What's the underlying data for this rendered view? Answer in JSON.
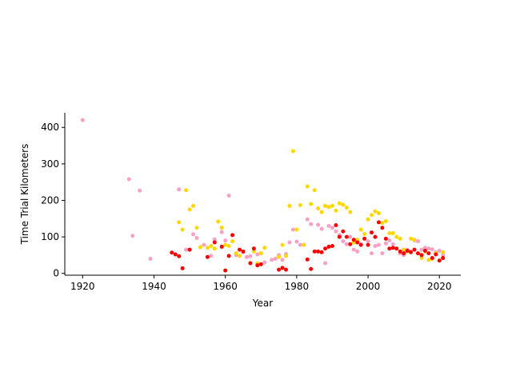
{
  "chart_data": {
    "type": "scatter",
    "xlabel": "Year",
    "ylabel": "Time Trial Kilometers",
    "xlim": [
      1915,
      2026
    ],
    "ylim": [
      -5,
      440
    ],
    "xticks": [
      1920,
      1940,
      1960,
      1980,
      2000,
      2020
    ],
    "yticks": [
      0,
      100,
      200,
      300,
      400
    ],
    "grid": false,
    "legend": "none",
    "series": [
      {
        "color": "#f7a1c4",
        "points": [
          [
            1920,
            420
          ],
          [
            1933,
            258
          ],
          [
            1934,
            103
          ],
          [
            1936,
            227
          ],
          [
            1939,
            40
          ],
          [
            1947,
            230
          ],
          [
            1949,
            65
          ],
          [
            1951,
            107
          ],
          [
            1952,
            97
          ],
          [
            1954,
            78
          ],
          [
            1956,
            48
          ],
          [
            1957,
            93
          ],
          [
            1959,
            113
          ],
          [
            1960,
            90
          ],
          [
            1961,
            213
          ],
          [
            1963,
            50
          ],
          [
            1965,
            58
          ],
          [
            1966,
            45
          ],
          [
            1967,
            47
          ],
          [
            1969,
            52
          ],
          [
            1970,
            55
          ],
          [
            1971,
            30
          ],
          [
            1973,
            37
          ],
          [
            1974,
            40
          ],
          [
            1975,
            50
          ],
          [
            1976,
            37
          ],
          [
            1977,
            53
          ],
          [
            1978,
            85
          ],
          [
            1979,
            120
          ],
          [
            1980,
            87
          ],
          [
            1981,
            78
          ],
          [
            1982,
            78
          ],
          [
            1983,
            148
          ],
          [
            1984,
            135
          ],
          [
            1986,
            133
          ],
          [
            1987,
            122
          ],
          [
            1988,
            28
          ],
          [
            1989,
            130
          ],
          [
            1990,
            125
          ],
          [
            1991,
            115
          ],
          [
            1992,
            105
          ],
          [
            1993,
            88
          ],
          [
            1994,
            80
          ],
          [
            1995,
            100
          ],
          [
            1996,
            65
          ],
          [
            1997,
            60
          ],
          [
            1998,
            80
          ],
          [
            2000,
            88
          ],
          [
            2001,
            55
          ],
          [
            2002,
            75
          ],
          [
            2003,
            78
          ],
          [
            2004,
            55
          ],
          [
            2005,
            82
          ],
          [
            2006,
            90
          ],
          [
            2007,
            80
          ],
          [
            2008,
            68
          ],
          [
            2009,
            55
          ],
          [
            2010,
            50
          ],
          [
            2011,
            65
          ],
          [
            2012,
            60
          ],
          [
            2013,
            90
          ],
          [
            2014,
            88
          ],
          [
            2015,
            65
          ],
          [
            2016,
            70
          ],
          [
            2017,
            68
          ],
          [
            2018,
            66
          ],
          [
            2019,
            58
          ],
          [
            2020,
            62
          ],
          [
            2021,
            50
          ]
        ]
      },
      {
        "color": "#ffd700",
        "points": [
          [
            1947,
            140
          ],
          [
            1948,
            120
          ],
          [
            1949,
            228
          ],
          [
            1950,
            175
          ],
          [
            1951,
            185
          ],
          [
            1952,
            125
          ],
          [
            1953,
            72
          ],
          [
            1955,
            70
          ],
          [
            1956,
            75
          ],
          [
            1957,
            68
          ],
          [
            1958,
            142
          ],
          [
            1959,
            125
          ],
          [
            1960,
            78
          ],
          [
            1961,
            75
          ],
          [
            1962,
            88
          ],
          [
            1963,
            55
          ],
          [
            1964,
            48
          ],
          [
            1968,
            60
          ],
          [
            1969,
            27
          ],
          [
            1970,
            55
          ],
          [
            1971,
            70
          ],
          [
            1975,
            45
          ],
          [
            1976,
            78
          ],
          [
            1977,
            48
          ],
          [
            1978,
            185
          ],
          [
            1979,
            335
          ],
          [
            1980,
            120
          ],
          [
            1981,
            187
          ],
          [
            1982,
            78
          ],
          [
            1983,
            238
          ],
          [
            1984,
            190
          ],
          [
            1985,
            228
          ],
          [
            1986,
            178
          ],
          [
            1987,
            168
          ],
          [
            1988,
            185
          ],
          [
            1989,
            182
          ],
          [
            1990,
            185
          ],
          [
            1991,
            172
          ],
          [
            1992,
            192
          ],
          [
            1993,
            188
          ],
          [
            1994,
            180
          ],
          [
            1995,
            168
          ],
          [
            1996,
            85
          ],
          [
            1997,
            92
          ],
          [
            1998,
            120
          ],
          [
            1999,
            108
          ],
          [
            2000,
            148
          ],
          [
            2001,
            160
          ],
          [
            2002,
            170
          ],
          [
            2003,
            165
          ],
          [
            2004,
            138
          ],
          [
            2005,
            143
          ],
          [
            2006,
            110
          ],
          [
            2007,
            110
          ],
          [
            2008,
            100
          ],
          [
            2009,
            95
          ],
          [
            2010,
            65
          ],
          [
            2011,
            60
          ],
          [
            2012,
            95
          ],
          [
            2013,
            92
          ],
          [
            2014,
            55
          ],
          [
            2015,
            42
          ],
          [
            2016,
            60
          ],
          [
            2017,
            37
          ],
          [
            2018,
            40
          ],
          [
            2019,
            55
          ],
          [
            2020,
            35
          ],
          [
            2021,
            58
          ]
        ]
      },
      {
        "color": "#ff0000",
        "points": [
          [
            1945,
            57
          ],
          [
            1946,
            52
          ],
          [
            1947,
            47
          ],
          [
            1948,
            14
          ],
          [
            1950,
            65
          ],
          [
            1955,
            45
          ],
          [
            1957,
            85
          ],
          [
            1959,
            73
          ],
          [
            1960,
            8
          ],
          [
            1961,
            48
          ],
          [
            1962,
            105
          ],
          [
            1964,
            65
          ],
          [
            1965,
            60
          ],
          [
            1967,
            28
          ],
          [
            1968,
            68
          ],
          [
            1969,
            22
          ],
          [
            1970,
            25
          ],
          [
            1975,
            10
          ],
          [
            1976,
            15
          ],
          [
            1977,
            10
          ],
          [
            1983,
            38
          ],
          [
            1984,
            12
          ],
          [
            1985,
            60
          ],
          [
            1986,
            60
          ],
          [
            1987,
            58
          ],
          [
            1988,
            68
          ],
          [
            1989,
            73
          ],
          [
            1990,
            75
          ],
          [
            1991,
            132
          ],
          [
            1992,
            100
          ],
          [
            1993,
            115
          ],
          [
            1994,
            100
          ],
          [
            1995,
            80
          ],
          [
            1996,
            92
          ],
          [
            1997,
            85
          ],
          [
            1998,
            78
          ],
          [
            1999,
            95
          ],
          [
            2000,
            78
          ],
          [
            2001,
            112
          ],
          [
            2002,
            100
          ],
          [
            2003,
            140
          ],
          [
            2004,
            125
          ],
          [
            2005,
            95
          ],
          [
            2006,
            68
          ],
          [
            2007,
            70
          ],
          [
            2008,
            68
          ],
          [
            2009,
            60
          ],
          [
            2010,
            55
          ],
          [
            2011,
            62
          ],
          [
            2012,
            58
          ],
          [
            2013,
            65
          ],
          [
            2014,
            55
          ],
          [
            2015,
            50
          ],
          [
            2016,
            62
          ],
          [
            2017,
            55
          ],
          [
            2018,
            42
          ],
          [
            2019,
            52
          ],
          [
            2020,
            35
          ],
          [
            2021,
            42
          ]
        ]
      }
    ]
  }
}
